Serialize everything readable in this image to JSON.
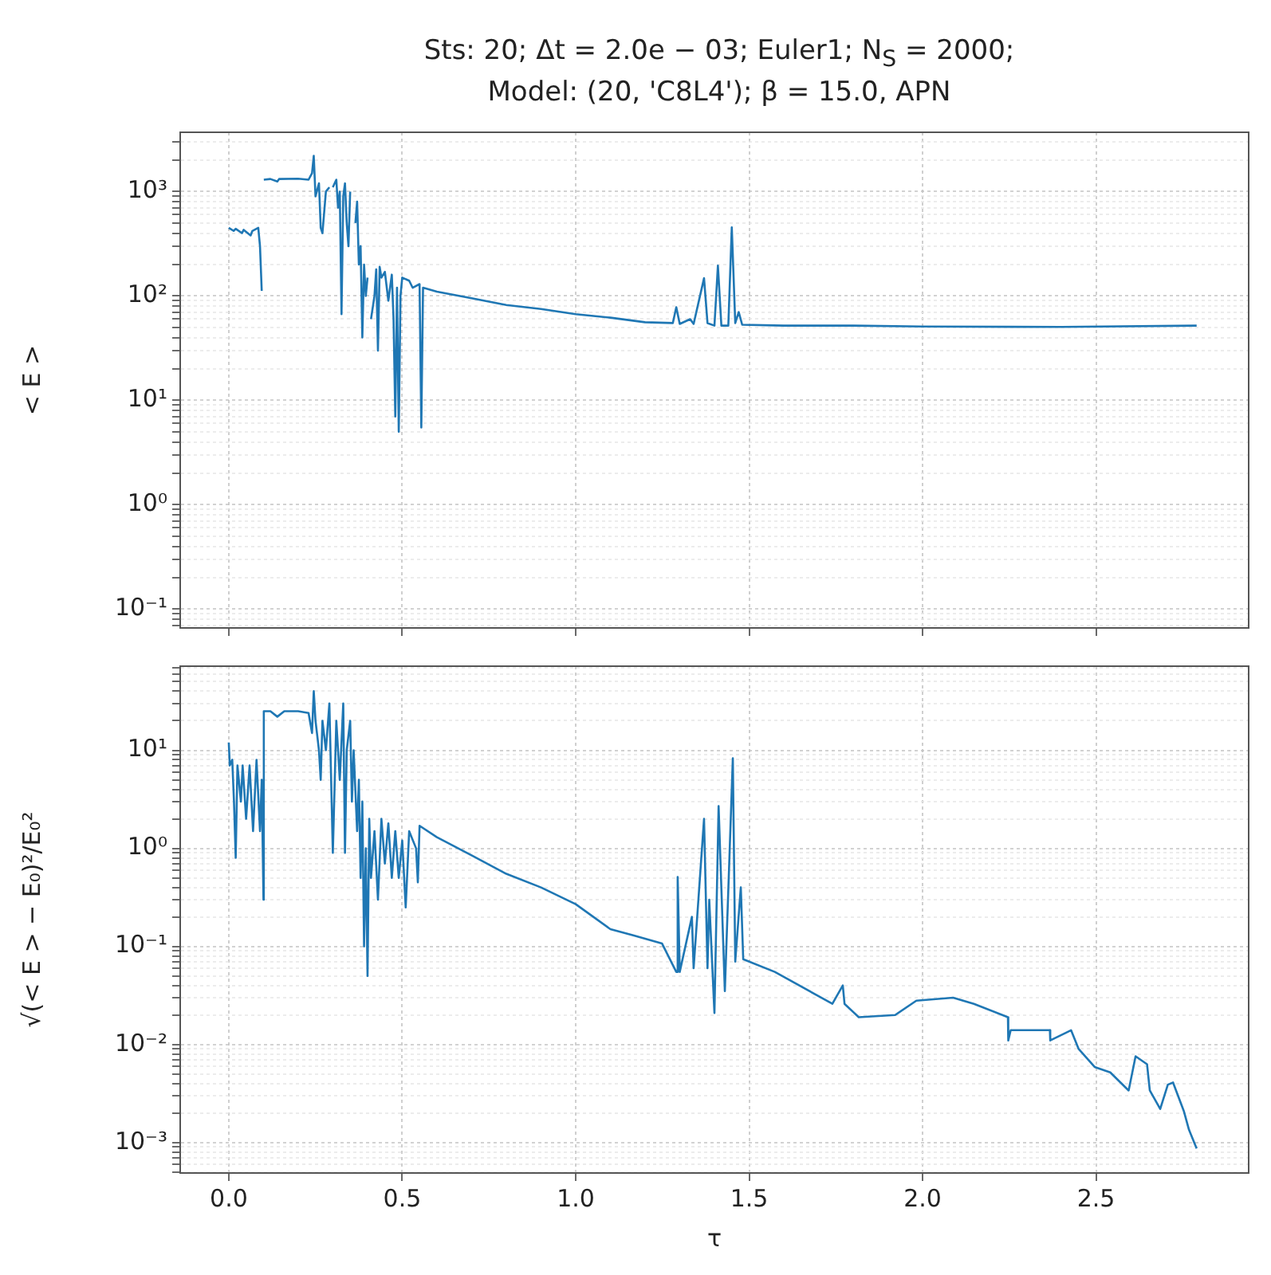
{
  "chart_data": [
    {
      "type": "line",
      "title": "Sts: 20; Δt = 2.0e − 03; Euler1; N$_{S}$ = 2000;\nModel: (20, 'C8L4'); β = 15.0, APN",
      "ylabel": "< E >",
      "log": "y",
      "grid": true,
      "legend": false,
      "tick_labels": "y",
      "marker": "none",
      "line_style": "solid",
      "xlim": [
        -0.14,
        2.94
      ],
      "xticks": [
        {
          "value": 0,
          "label": null
        },
        {
          "value": 0.5,
          "label": null
        },
        {
          "value": 1,
          "label": null
        },
        {
          "value": 1.5,
          "label": null
        },
        {
          "value": 2,
          "label": null
        },
        {
          "value": 2.5,
          "label": null
        }
      ],
      "ylim": [
        0.066,
        3700
      ],
      "yticks": [
        {
          "value": 0.1,
          "label": "10⁻¹"
        },
        {
          "value": 1,
          "label": "10⁰"
        },
        {
          "value": 10,
          "label": "10¹"
        },
        {
          "value": 100,
          "label": "10²"
        },
        {
          "value": 1000,
          "label": "10³"
        }
      ],
      "series": [
        {
          "color": "#1f77b4",
          "x": [
            0,
            0.014,
            0.02,
            0.038,
            0.043,
            0.063,
            0.068,
            0.085,
            0.09,
            0.095,
            0.098,
            0.1,
            0.101,
            0.12,
            0.14,
            0.145,
            0.2,
            0.23,
            0.24,
            0.245,
            0.25,
            0.26,
            0.265,
            0.27,
            0.28,
            0.29,
            0.295,
            0.3,
            0.31,
            0.315,
            0.32,
            0.325,
            0.33,
            0.335,
            0.34,
            0.345,
            0.35,
            0.355,
            0.36,
            0.365,
            0.37,
            0.375,
            0.38,
            0.385,
            0.39,
            0.395,
            0.4,
            0.405,
            0.41,
            0.42,
            0.425,
            0.43,
            0.435,
            0.44,
            0.45,
            0.46,
            0.47,
            0.475,
            0.48,
            0.485,
            0.49,
            0.495,
            0.5,
            0.52,
            0.53,
            0.55,
            0.555,
            0.56,
            0.6,
            0.7,
            0.8,
            0.9,
            1.0,
            1.1,
            1.2,
            1.28,
            1.29,
            1.3,
            1.33,
            1.34,
            1.37,
            1.38,
            1.4,
            1.41,
            1.42,
            1.44,
            1.45,
            1.46,
            1.47,
            1.48,
            1.6,
            1.8,
            2.0,
            2.4,
            2.79
          ],
          "values": [
            450,
            420,
            440,
            400,
            430,
            380,
            420,
            450,
            300,
            112,
            null,
            null,
            1300,
            1320,
            1250,
            1320,
            1330,
            1300,
            1500,
            2200,
            900,
            1200,
            450,
            400,
            1000,
            1100,
            null,
            1100,
            1300,
            700,
            1000,
            67,
            900,
            1200,
            500,
            300,
            1000,
            null,
            null,
            500,
            800,
            200,
            300,
            40,
            200,
            100,
            150,
            null,
            60,
            100,
            180,
            30,
            190,
            150,
            170,
            90,
            160,
            60,
            7,
            120,
            5,
            100,
            150,
            140,
            120,
            130,
            5.5,
            120,
            110,
            95,
            82,
            75,
            67,
            62,
            56,
            55,
            78,
            54,
            60,
            54,
            148,
            55,
            52,
            195,
            52,
            52,
            455,
            55,
            70,
            53,
            52,
            52,
            51,
            50.5,
            52
          ]
        }
      ]
    },
    {
      "type": "line",
      "xlabel": "τ",
      "ylabel": "√(< E > − E₀)²/E₀²",
      "log": "y",
      "grid": true,
      "legend": false,
      "marker": "none",
      "line_style": "solid",
      "xlim": [
        -0.14,
        2.94
      ],
      "xticks": [
        {
          "value": 0,
          "label": "0.0"
        },
        {
          "value": 0.5,
          "label": "0.5"
        },
        {
          "value": 1,
          "label": "1.0"
        },
        {
          "value": 1.5,
          "label": "1.5"
        },
        {
          "value": 2,
          "label": "2.0"
        },
        {
          "value": 2.5,
          "label": "2.5"
        }
      ],
      "ylim": [
        0.00049,
        72
      ],
      "yticks": [
        {
          "value": 0.001,
          "label": "10⁻³"
        },
        {
          "value": 0.01,
          "label": "10⁻²"
        },
        {
          "value": 0.1,
          "label": "10⁻¹"
        },
        {
          "value": 1,
          "label": "10⁰"
        },
        {
          "value": 10,
          "label": "10¹"
        }
      ],
      "series": [
        {
          "color": "#1f77b4",
          "x": [
            0,
            0.003,
            0.01,
            0.015,
            0.02,
            0.025,
            0.035,
            0.04,
            0.05,
            0.06,
            0.07,
            0.08,
            0.09,
            0.095,
            0.1,
            0.101,
            0.12,
            0.14,
            0.16,
            0.2,
            0.23,
            0.24,
            0.245,
            0.25,
            0.26,
            0.265,
            0.27,
            0.28,
            0.29,
            0.3,
            0.31,
            0.32,
            0.33,
            0.335,
            0.34,
            0.35,
            0.355,
            0.36,
            0.37,
            0.375,
            0.38,
            0.385,
            0.39,
            0.395,
            0.4,
            0.405,
            0.41,
            0.42,
            0.43,
            0.44,
            0.45,
            0.46,
            0.47,
            0.48,
            0.49,
            0.5,
            0.51,
            0.52,
            0.54,
            0.545,
            0.55,
            0.6,
            0.7,
            0.8,
            0.9,
            1.0,
            1.1,
            1.166,
            1.249,
            1.29,
            1.294,
            1.3,
            1.335,
            1.34,
            1.37,
            1.38,
            1.385,
            1.4,
            1.412,
            1.43,
            1.453,
            1.46,
            1.476,
            1.483,
            1.574,
            1.74,
            1.77,
            1.775,
            1.816,
            1.921,
            1.982,
            2.088,
            2.148,
            2.246,
            2.247,
            2.254,
            2.367,
            2.368,
            2.428,
            2.45,
            2.496,
            2.541,
            2.594,
            2.614,
            2.647,
            2.655,
            2.685,
            2.707,
            2.722,
            2.753,
            2.768,
            2.79
          ],
          "values": [
            12,
            7,
            8,
            3,
            0.8,
            7,
            3,
            7,
            2,
            7,
            1.5,
            8,
            1.5,
            5,
            0.3,
            25,
            25,
            22,
            25,
            25,
            24,
            15,
            40,
            20,
            10,
            5,
            20,
            10,
            30,
            0.9,
            20,
            5,
            30,
            0.9,
            10,
            20,
            3,
            10,
            1.5,
            5,
            0.5,
            3,
            0.1,
            1,
            0.05,
            2,
            0.5,
            1.5,
            0.3,
            2,
            0.7,
            1.8,
            0.5,
            1.5,
            0.5,
            1.2,
            0.25,
            1.5,
            1.0,
            0.45,
            1.7,
            1.3,
            0.85,
            0.55,
            0.4,
            0.27,
            0.15,
            0.13,
            0.107,
            0.055,
            0.51,
            0.055,
            0.2,
            0.06,
            2.0,
            0.06,
            0.3,
            0.021,
            2.7,
            0.035,
            8.3,
            0.07,
            0.4,
            0.074,
            0.055,
            0.026,
            0.04,
            0.026,
            0.019,
            0.02,
            0.028,
            0.03,
            0.026,
            0.019,
            0.011,
            0.014,
            0.014,
            0.011,
            0.014,
            0.009,
            0.0059,
            0.0052,
            0.0034,
            0.0076,
            0.0063,
            0.0034,
            0.0022,
            0.0039,
            0.0041,
            0.0021,
            0.00135,
            0.00087
          ]
        }
      ]
    }
  ]
}
